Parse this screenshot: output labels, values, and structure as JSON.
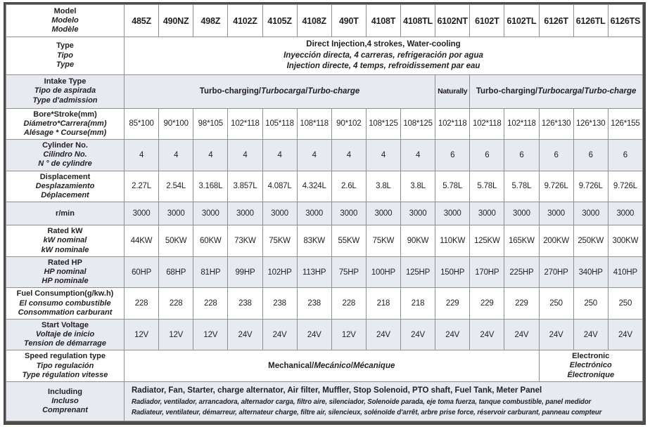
{
  "theme": {
    "band_color": "#e8eaf2",
    "grid_color": "#8f8f8f",
    "frame_color": "#4e4b47",
    "text_color": "#231f20",
    "page_bg": "#ffffff"
  },
  "table": {
    "slash_separator": "/",
    "models": [
      "485Z",
      "490NZ",
      "498Z",
      "4102Z",
      "4105Z",
      "4108Z",
      "490T",
      "4108T",
      "4108TL",
      "6102NT",
      "6102T",
      "6102TL",
      "6126T",
      "6126TL",
      "6126TS"
    ],
    "rows": [
      {
        "key": "model",
        "label_lines": [
          "Model",
          "Modelo",
          "Modèle"
        ],
        "shaded": false,
        "cells": {
          "mode": "models"
        }
      },
      {
        "key": "type",
        "label_lines": [
          "Type",
          "Tipo",
          "Type"
        ],
        "shaded": false,
        "cells": {
          "mode": "block",
          "align": "center",
          "lines": [
            "Direct Injection,4 strokes, Water-cooling",
            "Inyección directa, 4 carreras, refrigeración por agua",
            "Injection directe, 4 temps, refroidissement par eau"
          ]
        }
      },
      {
        "key": "intake",
        "label_lines": [
          "Intake Type",
          "Tipo de aspirada",
          "Type d'admission"
        ],
        "shaded": true,
        "cells": {
          "mode": "spans",
          "spans": [
            {
              "cols": 9,
              "parts": [
                "Turbo-charging",
                "Turbocarga",
                "Turbo-charge"
              ]
            },
            {
              "cols": 1,
              "parts": [
                "Naturally"
              ],
              "tight": true
            },
            {
              "cols": 5,
              "parts": [
                "Turbo-charging",
                "Turbocarga",
                "Turbo-charge"
              ]
            }
          ]
        }
      },
      {
        "key": "bore",
        "label_lines": [
          "Bore*Stroke(mm)",
          "Diámetro*Carrera(mm)",
          "Alésage * Course(mm)"
        ],
        "shaded": false,
        "cells": {
          "mode": "values",
          "values": [
            "85*100",
            "90*100",
            "98*105",
            "102*118",
            "105*118",
            "108*118",
            "90*102",
            "108*125",
            "108*125",
            "102*118",
            "102*118",
            "102*118",
            "126*130",
            "126*130",
            "126*155"
          ]
        }
      },
      {
        "key": "cylinder",
        "label_lines": [
          "Cylinder No.",
          "Cilindro No.",
          "N ° de cylindre"
        ],
        "shaded": true,
        "cells": {
          "mode": "values",
          "values": [
            "4",
            "4",
            "4",
            "4",
            "4",
            "4",
            "4",
            "4",
            "4",
            "6",
            "6",
            "6",
            "6",
            "6",
            "6"
          ]
        }
      },
      {
        "key": "displacement",
        "label_lines": [
          "Displacement",
          "Desplazamiento",
          "Déplacement"
        ],
        "shaded": false,
        "cells": {
          "mode": "values",
          "values": [
            "2.27L",
            "2.54L",
            "3.168L",
            "3.857L",
            "4.087L",
            "4.324L",
            "2.6L",
            "3.8L",
            "3.8L",
            "5.78L",
            "5.78L",
            "5.78L",
            "9.726L",
            "9.726L",
            "9.726L"
          ]
        }
      },
      {
        "key": "rmin",
        "label_lines": [
          "r/min"
        ],
        "shaded": true,
        "cells": {
          "mode": "values",
          "values": [
            "3000",
            "3000",
            "3000",
            "3000",
            "3000",
            "3000",
            "3000",
            "3000",
            "3000",
            "3000",
            "3000",
            "3000",
            "3000",
            "3000",
            "3000"
          ]
        }
      },
      {
        "key": "kw",
        "label_lines": [
          "Rated kW",
          "kW nominal",
          "kW nominale"
        ],
        "shaded": false,
        "cells": {
          "mode": "values",
          "values": [
            "44KW",
            "50KW",
            "60KW",
            "73KW",
            "75KW",
            "83KW",
            "55KW",
            "75KW",
            "90KW",
            "110KW",
            "125KW",
            "165KW",
            "200KW",
            "250KW",
            "300KW"
          ]
        }
      },
      {
        "key": "hp",
        "label_lines": [
          "Rated HP",
          "HP nominal",
          "HP nominale"
        ],
        "shaded": true,
        "cells": {
          "mode": "values",
          "values": [
            "60HP",
            "68HP",
            "81HP",
            "99HP",
            "102HP",
            "113HP",
            "75HP",
            "100HP",
            "125HP",
            "150HP",
            "170HP",
            "225HP",
            "270HP",
            "340HP",
            "410HP"
          ]
        }
      },
      {
        "key": "fuel",
        "label_lines": [
          "Fuel Consumption(g/kw.h)",
          "El consumo combustible",
          "Consommation carburant"
        ],
        "shaded": false,
        "cells": {
          "mode": "values",
          "values": [
            "228",
            "228",
            "228",
            "238",
            "238",
            "238",
            "228",
            "218",
            "218",
            "229",
            "229",
            "229",
            "250",
            "250",
            "250"
          ]
        }
      },
      {
        "key": "voltage",
        "label_lines": [
          "Start Voltage",
          "Voltaje de inicio",
          "Tension de démarrage"
        ],
        "shaded": true,
        "cells": {
          "mode": "values",
          "values": [
            "12V",
            "12V",
            "12V",
            "24V",
            "24V",
            "24V",
            "12V",
            "24V",
            "24V",
            "24V",
            "24V",
            "24V",
            "24V",
            "24V",
            "24V"
          ]
        }
      },
      {
        "key": "speed",
        "label_lines": [
          "Speed regulation type",
          "Tipo regulación",
          "Type régulation vitesse"
        ],
        "shaded": false,
        "cells": {
          "mode": "spans",
          "spans": [
            {
              "cols": 12,
              "parts": [
                "Mechanical",
                "Mecánico",
                "Mécanique"
              ]
            },
            {
              "cols": 3,
              "lines": [
                "Electronic",
                "Electrónico",
                "Électronique"
              ]
            }
          ]
        }
      },
      {
        "key": "including",
        "label_lines": [
          "Including",
          "Incluso",
          "Comprenant"
        ],
        "shaded": true,
        "cells": {
          "mode": "block",
          "align": "left",
          "lines": [
            "Radiator, Fan, Starter, charge alternator, Air filter, Muffler, Stop Solenoid, PTO shaft, Fuel Tank, Meter Panel",
            "Radiador, ventilador, arrancadora, alternador carga, filtro aire, silenciador, Solenoide parada, eje toma fuerza, tanque combustible, panel medidor",
            "Radiateur, ventilateur, démarreur, alternateur charge, filtre air, silencieux, solénoïde d'arrêt, arbre prise force, réservoir carburant, panneau compteur"
          ]
        }
      }
    ]
  }
}
